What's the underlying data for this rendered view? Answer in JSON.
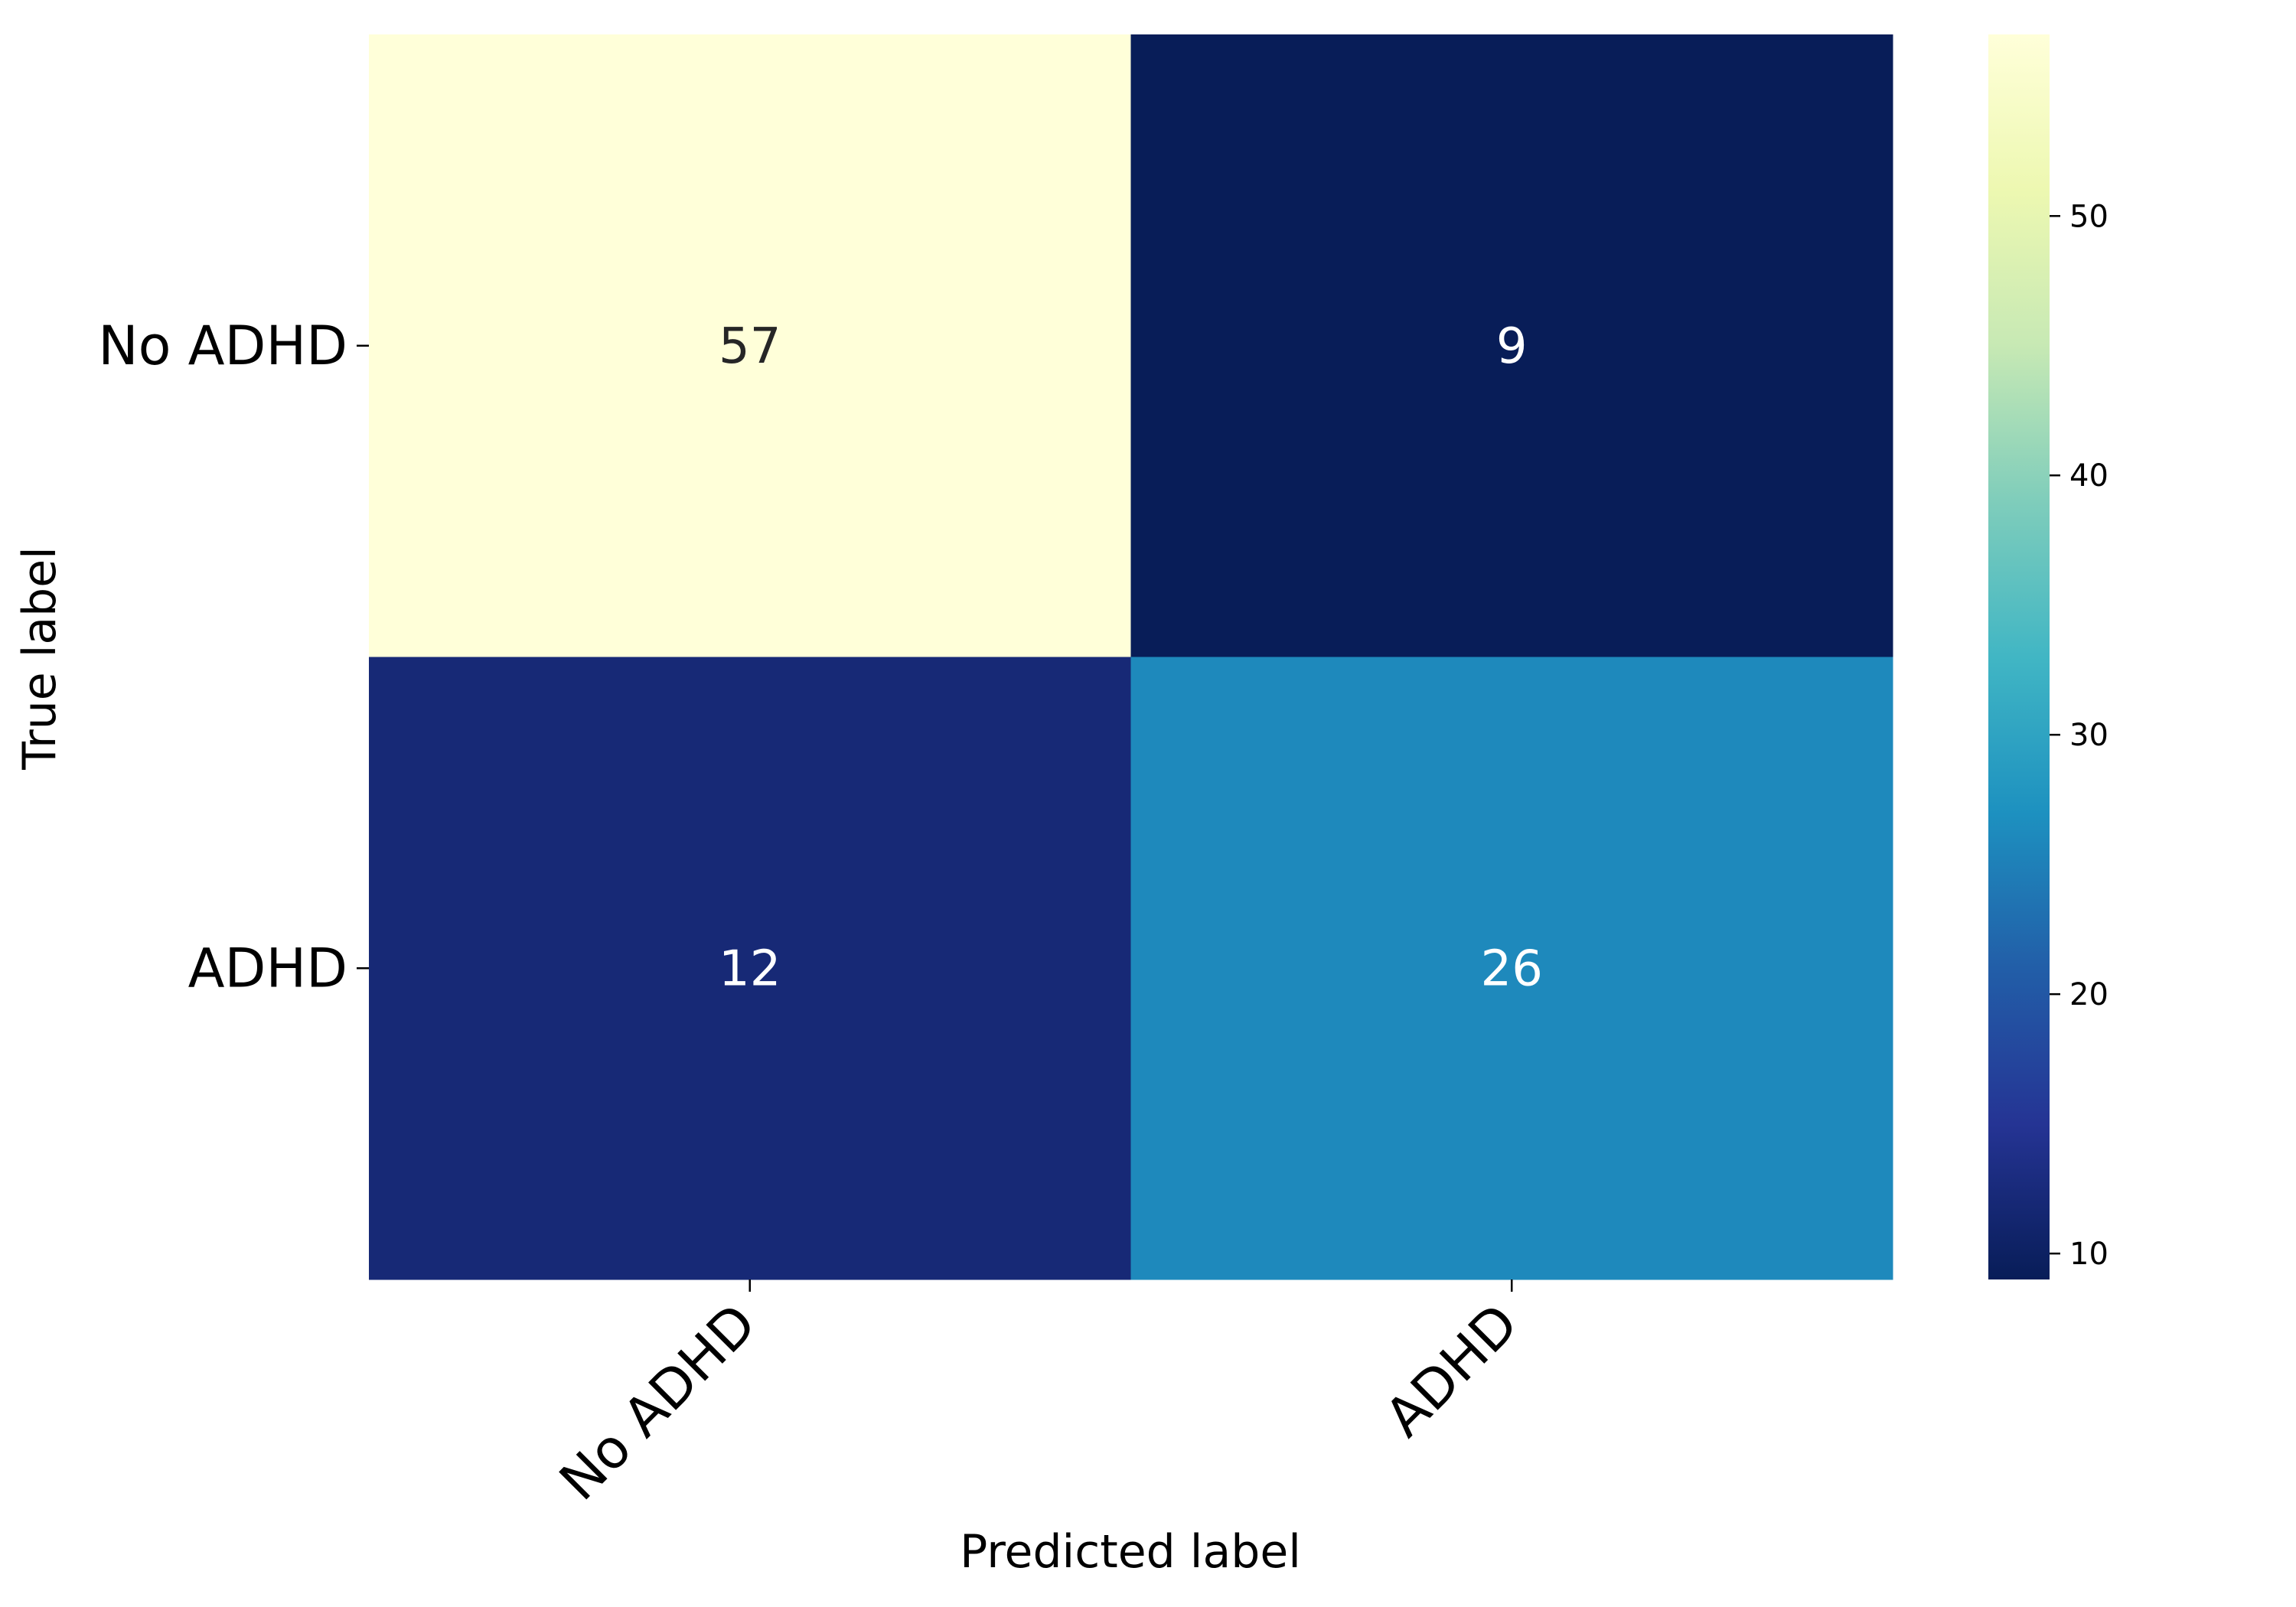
{
  "chart_data": {
    "type": "heatmap",
    "x_categories": [
      "No ADHD",
      "ADHD"
    ],
    "y_categories": [
      "No ADHD",
      "ADHD"
    ],
    "values": [
      [
        57,
        9
      ],
      [
        12,
        26
      ]
    ],
    "xlabel": "Predicted label",
    "ylabel": "True label",
    "colorbar": {
      "min": 9,
      "max": 57,
      "ticks": [
        10,
        20,
        30,
        40,
        50
      ],
      "colormap": "YlGnBu",
      "stops": [
        "#ffffd9",
        "#edf8b1",
        "#c7e9b4",
        "#7fcdbb",
        "#41b6c4",
        "#1d91c0",
        "#225ea8",
        "#253494",
        "#081d58"
      ]
    },
    "annotation_colors": {
      "light_bg": "#262626",
      "dark_bg": "#ffffff"
    }
  }
}
